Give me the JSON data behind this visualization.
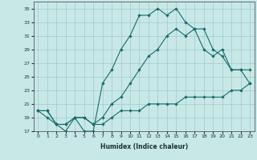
{
  "xlabel": "Humidex (Indice chaleur)",
  "bg_color": "#c8e8e8",
  "grid_color": "#a0c8c8",
  "line_color": "#1a6b6b",
  "xlim_min": -0.5,
  "xlim_max": 23.5,
  "ylim_min": 17,
  "ylim_max": 36,
  "xticks": [
    0,
    1,
    2,
    3,
    4,
    5,
    6,
    7,
    8,
    9,
    10,
    11,
    12,
    13,
    14,
    15,
    16,
    17,
    18,
    19,
    20,
    21,
    22,
    23
  ],
  "yticks": [
    17,
    19,
    21,
    23,
    25,
    27,
    29,
    31,
    33,
    35
  ],
  "line1_x": [
    0,
    1,
    2,
    3,
    4,
    5,
    6,
    7,
    8,
    9,
    10,
    11,
    12,
    13,
    14,
    15,
    16,
    17,
    18,
    19,
    20,
    21,
    22,
    23
  ],
  "line1_y": [
    20,
    19,
    18,
    17,
    19,
    17,
    17,
    24,
    26,
    29,
    31,
    34,
    34,
    35,
    34,
    35,
    33,
    32,
    32,
    29,
    28,
    26,
    26,
    24
  ],
  "line2_x": [
    0,
    1,
    2,
    3,
    4,
    5,
    6,
    7,
    8,
    9,
    10,
    11,
    12,
    13,
    14,
    15,
    16,
    17,
    18,
    19,
    20,
    21,
    22,
    23
  ],
  "line2_y": [
    20,
    20,
    18,
    18,
    19,
    19,
    18,
    19,
    21,
    22,
    24,
    26,
    28,
    29,
    31,
    32,
    31,
    32,
    29,
    28,
    29,
    26,
    26,
    26
  ],
  "line3_x": [
    0,
    1,
    2,
    3,
    4,
    5,
    6,
    7,
    8,
    9,
    10,
    11,
    12,
    13,
    14,
    15,
    16,
    17,
    18,
    19,
    20,
    21,
    22,
    23
  ],
  "line3_y": [
    20,
    20,
    18,
    18,
    19,
    19,
    18,
    18,
    19,
    20,
    20,
    20,
    21,
    21,
    21,
    21,
    22,
    22,
    22,
    22,
    22,
    23,
    23,
    24
  ],
  "marker_size": 2.2,
  "line_width": 0.8,
  "tick_fontsize": 4.5,
  "xlabel_fontsize": 5.5
}
